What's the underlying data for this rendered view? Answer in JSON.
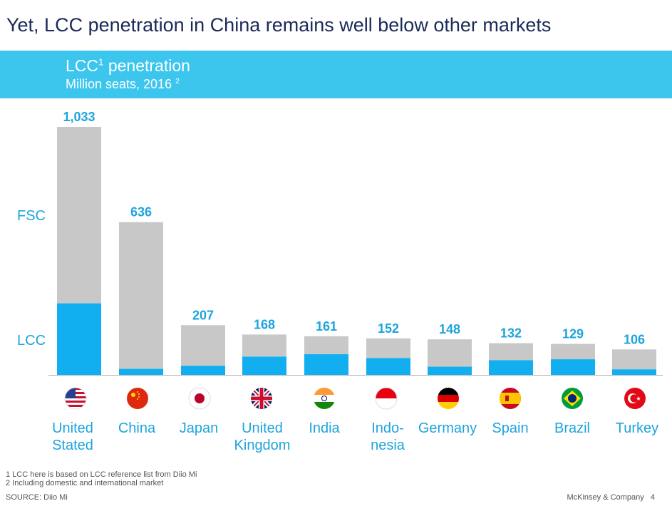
{
  "title": "Yet, LCC penetration in China remains well below other markets",
  "banner": {
    "main_text": "LCC",
    "main_sup": "1",
    "main_suffix": " penetration",
    "sub_text": "Million seats, 2016 ",
    "sub_sup": "2"
  },
  "colors": {
    "lcc": "#12aff0",
    "fsc": "#c8c8c8",
    "label": "#1ea4dc",
    "banner": "#3cc6ee"
  },
  "chart_data": {
    "type": "bar",
    "stacked": true,
    "categories": [
      "United Stated",
      "China",
      "Japan",
      "United Kingdom",
      "India",
      "Indonesia",
      "Germany",
      "Spain",
      "Brazil",
      "Turkey"
    ],
    "series": [
      {
        "name": "LCC",
        "values": [
          298,
          25,
          38,
          76,
          86,
          70,
          34,
          61,
          65,
          23
        ]
      },
      {
        "name": "FSC",
        "values": [
          735,
          611,
          169,
          92,
          75,
          82,
          114,
          71,
          64,
          83
        ]
      }
    ],
    "totals": [
      "1,033",
      "636",
      "207",
      "168",
      "161",
      "152",
      "148",
      "132",
      "129",
      "106"
    ],
    "total_values": [
      1033,
      636,
      207,
      168,
      161,
      152,
      148,
      132,
      129,
      106
    ],
    "series_labels": {
      "fsc": "FSC",
      "lcc": "LCC"
    },
    "title": "LCC penetration",
    "ylabel": "Million seats, 2016",
    "ylim": [
      0,
      1033
    ]
  },
  "countries": [
    {
      "line1": "United",
      "line2": "Stated",
      "flag": "usa-flag-icon"
    },
    {
      "line1": "China",
      "line2": "",
      "flag": "china-flag-icon"
    },
    {
      "line1": "Japan",
      "line2": "",
      "flag": "japan-flag-icon"
    },
    {
      "line1": "United",
      "line2": "Kingdom",
      "flag": "uk-flag-icon"
    },
    {
      "line1": "India",
      "line2": "",
      "flag": "india-flag-icon"
    },
    {
      "line1": "Indo-",
      "line2": "nesia",
      "flag": "indonesia-flag-icon"
    },
    {
      "line1": "Germany",
      "line2": "",
      "flag": "germany-flag-icon"
    },
    {
      "line1": "Spain",
      "line2": "",
      "flag": "spain-flag-icon"
    },
    {
      "line1": "Brazil",
      "line2": "",
      "flag": "brazil-flag-icon"
    },
    {
      "line1": "Turkey",
      "line2": "",
      "flag": "turkey-flag-icon"
    }
  ],
  "footnotes": [
    "1 LCC here is based on LCC reference list from Diio Mi",
    "2 Including domestic and international market"
  ],
  "source": "SOURCE: Diio Mi",
  "brand": "McKinsey & Company",
  "page_number": "4"
}
